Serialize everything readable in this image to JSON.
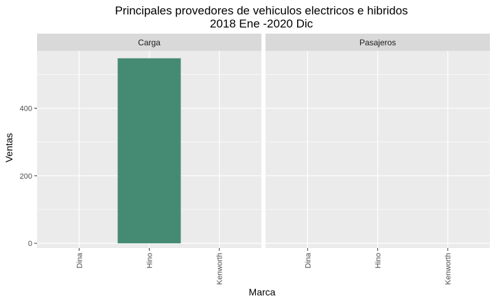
{
  "chart_data": {
    "type": "bar",
    "title_line1": "Principales provedores de vehiculos electricos e hibridos",
    "title_line2": "2018 Ene -2020 Dic",
    "xlabel": "Marca",
    "ylabel": "Ventas",
    "ylim": [
      -14,
      570
    ],
    "yticks": [
      0,
      200,
      400
    ],
    "categories": [
      "Dina",
      "Hino",
      "Kenworth"
    ],
    "facets": [
      {
        "name": "Carga",
        "values": [
          0,
          548,
          0
        ]
      },
      {
        "name": "Pasajeros",
        "values": [
          0,
          0,
          0
        ]
      }
    ],
    "bar_color": "#458B74",
    "panel_background": "#EBEBEB",
    "strip_background": "#D9D9D9",
    "grid": true,
    "legend": "none"
  }
}
